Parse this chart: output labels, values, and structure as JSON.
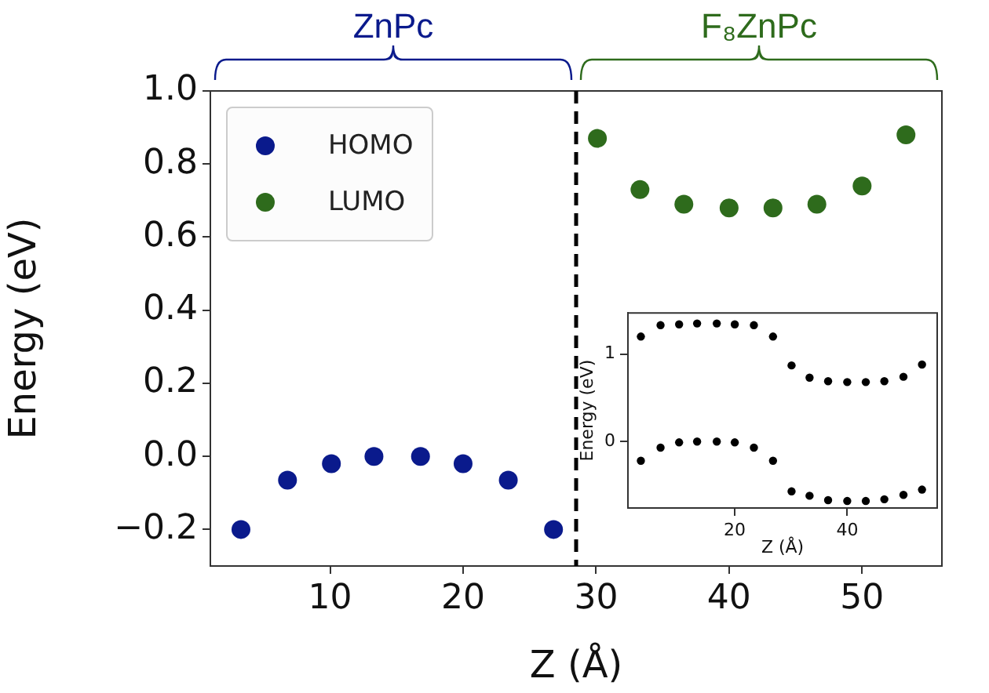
{
  "chart_data": [
    {
      "type": "scatter",
      "xlabel": "Z (Å)",
      "ylabel": "Energy (eV)",
      "annotations": [
        "ZnPc",
        "F₈ZnPc"
      ],
      "xlim": [
        1,
        56
      ],
      "ylim": [
        -0.3,
        1.0
      ],
      "xticks": [
        10,
        20,
        30,
        40,
        50
      ],
      "yticks": [
        {
          "value": -0.2,
          "label": "−0.2"
        },
        {
          "value": 0,
          "label": "0.0"
        },
        {
          "value": 0.2,
          "label": "0.2"
        },
        {
          "value": 0.4,
          "label": "0.4"
        },
        {
          "value": 0.6,
          "label": "0.6"
        },
        {
          "value": 0.8,
          "label": "0.8"
        },
        {
          "value": 1,
          "label": "1.0"
        }
      ],
      "ref_lines": [
        {
          "axis": "x",
          "value": 28.5,
          "color": "#000000",
          "line_style": "dashed"
        }
      ],
      "legend": "top left",
      "marker": "circle",
      "grid": false,
      "series": [
        {
          "name": "HOMO",
          "color": "#0a1a8c",
          "x": [
            3.3,
            6.8,
            10.1,
            13.3,
            16.8,
            20,
            23.4,
            26.8
          ],
          "values": [
            -0.2,
            -0.065,
            -0.02,
            0,
            0,
            -0.02,
            -0.065,
            -0.2
          ]
        },
        {
          "name": "LUMO",
          "color": "#2e6b1c",
          "x": [
            30.1,
            33.3,
            36.6,
            40,
            43.3,
            46.6,
            50,
            53.3
          ],
          "values": [
            0.87,
            0.73,
            0.69,
            0.68,
            0.68,
            0.69,
            0.74,
            0.88
          ]
        }
      ]
    },
    {
      "type": "scatter",
      "xlabel": "Z (Å)",
      "ylabel": "Energy (eV)",
      "xlim": [
        1,
        56
      ],
      "ylim": [
        -0.76,
        1.47
      ],
      "xticks": [
        20,
        40
      ],
      "yticks": [
        0,
        1
      ],
      "marker": "circle",
      "grid": false,
      "series": [
        {
          "color": "#000000",
          "x": [
            3.3,
            6.8,
            10.1,
            13.3,
            16.8,
            20,
            23.4,
            26.8,
            30.1,
            33.3,
            36.6,
            40,
            43.3,
            46.6,
            50,
            53.3
          ],
          "values": [
            1.2,
            1.33,
            1.34,
            1.35,
            1.35,
            1.34,
            1.33,
            1.2,
            0.87,
            0.73,
            0.69,
            0.68,
            0.68,
            0.69,
            0.74,
            0.88
          ]
        },
        {
          "color": "#000000",
          "x": [
            3.3,
            6.8,
            10.1,
            13.3,
            16.8,
            20,
            23.4,
            26.8,
            30.1,
            33.3,
            36.6,
            40,
            43.3,
            46.6,
            50,
            53.3
          ],
          "values": [
            -0.22,
            -0.07,
            -0.01,
            0,
            0,
            -0.01,
            -0.07,
            -0.22,
            -0.57,
            -0.62,
            -0.67,
            -0.68,
            -0.68,
            -0.66,
            -0.61,
            -0.55
          ]
        }
      ]
    }
  ]
}
